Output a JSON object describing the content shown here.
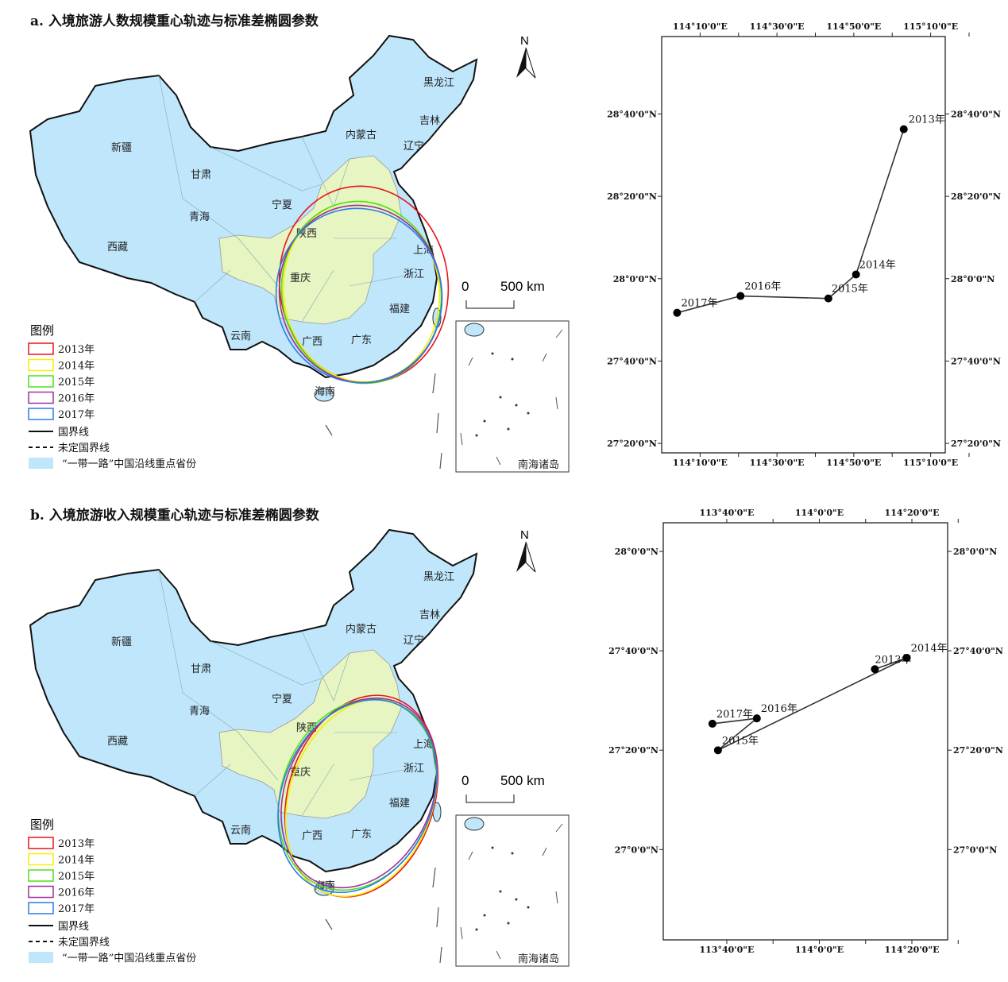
{
  "panels": [
    {
      "title": "a. 入境旅游人数规模重心轨迹与标准差椭圆参数",
      "north": "N",
      "scale": {
        "zero": "0",
        "label": "500 km"
      },
      "inset_label": "南海诸岛"
    },
    {
      "title": "b. 入境旅游收入规模重心轨迹与标准差椭圆参数",
      "north": "N",
      "scale": {
        "zero": "0",
        "label": "500 km"
      },
      "inset_label": "南海诸岛"
    }
  ],
  "provinces": [
    "黑龙江",
    "吉林",
    "内蒙古",
    "辽宁",
    "新疆",
    "甘肃",
    "宁夏",
    "青海",
    "陕西",
    "西藏",
    "重庆",
    "上海",
    "浙江",
    "福建",
    "云南",
    "广西",
    "广东",
    "海南"
  ],
  "legend": {
    "title": "图例",
    "items": [
      {
        "label": "2013年",
        "color": "#e8141c"
      },
      {
        "label": "2014年",
        "color": "#f4f000"
      },
      {
        "label": "2015年",
        "color": "#4ee01a"
      },
      {
        "label": "2016年",
        "color": "#a0309a"
      },
      {
        "label": "2017年",
        "color": "#2c7be5"
      }
    ],
    "boundary": "国界线",
    "undetermined": "未定国界线",
    "belt_road": "“一带一路”中国沿线重点省份"
  },
  "colors": {
    "belt_road_fill": "#bfe6fb",
    "other_fill": "#e6f5c2",
    "border": "#111111"
  },
  "chart_data": [
    {
      "type": "line",
      "title": "入境旅游人数规模重心轨迹",
      "x_ticks": [
        114.1667,
        114.5,
        114.8333,
        115.1667
      ],
      "x_tick_labels": [
        "114°10'0\"E",
        "114°30'0\"E",
        "114°50'0\"E",
        "115°10'0\"E"
      ],
      "y_ticks": [
        28.6667,
        28.3333,
        28.0,
        27.6667,
        27.3333
      ],
      "y_tick_labels": [
        "28°40'0\"N",
        "28°20'0\"N",
        "28°0'0\"N",
        "27°40'0\"N",
        "27°20'0\"N"
      ],
      "xlim": [
        114.0,
        115.23
      ],
      "ylim": [
        27.295,
        28.98
      ],
      "points": [
        {
          "label": "2013年",
          "lon": 115.05,
          "lat": 28.605
        },
        {
          "label": "2014年",
          "lon": 114.843,
          "lat": 28.017
        },
        {
          "label": "2015年",
          "lon": 114.723,
          "lat": 27.92
        },
        {
          "label": "2016年",
          "lon": 114.342,
          "lat": 27.93
        },
        {
          "label": "2017年",
          "lon": 114.067,
          "lat": 27.862
        }
      ]
    },
    {
      "type": "line",
      "title": "入境旅游收入规模重心轨迹",
      "x_ticks": [
        113.6667,
        114.0,
        114.3333
      ],
      "x_tick_labels": [
        "113°40'0\"E",
        "114°0'0\"E",
        "114°20'0\"E"
      ],
      "y_ticks": [
        28.0,
        27.6667,
        27.3333,
        27.0
      ],
      "y_tick_labels": [
        "28°0'0\"N",
        "27°40'0\"N",
        "27°20'0\"N",
        "27°0'0\"N"
      ],
      "xlim": [
        113.438,
        114.462
      ],
      "ylim": [
        26.697,
        28.096
      ],
      "points": [
        {
          "label": "2013年",
          "lon": 114.2,
          "lat": 27.605
        },
        {
          "label": "2014年",
          "lon": 114.315,
          "lat": 27.643
        },
        {
          "label": "2015年",
          "lon": 113.635,
          "lat": 27.333
        },
        {
          "label": "2016年",
          "lon": 113.775,
          "lat": 27.44
        },
        {
          "label": "2017年",
          "lon": 113.615,
          "lat": 27.422
        }
      ]
    }
  ]
}
